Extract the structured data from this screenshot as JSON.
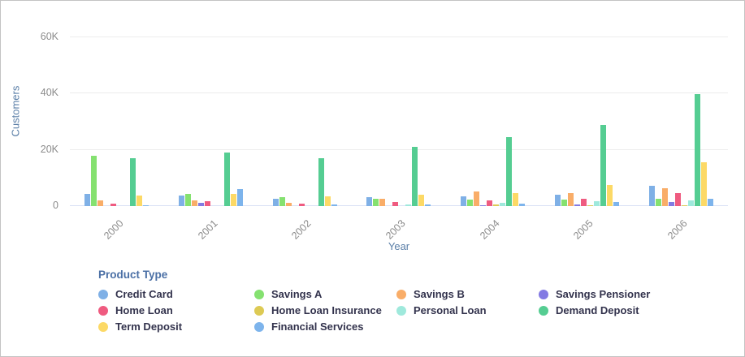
{
  "chart_data": {
    "type": "bar",
    "title": "",
    "xlabel": "Year",
    "ylabel": "Customers",
    "legend_title": "Product Type",
    "legend_position": "bottom",
    "grid": true,
    "ylim": [
      0,
      60000
    ],
    "y_gridlines": [
      {
        "label": "60K",
        "value": 60000
      },
      {
        "label": "40K",
        "value": 40000
      },
      {
        "label": "20K",
        "value": 20000
      },
      {
        "label": "0",
        "value": 0
      }
    ],
    "categories": [
      "2000",
      "2001",
      "2002",
      "2003",
      "2004",
      "2005",
      "2006"
    ],
    "series": [
      {
        "name": "Credit Card",
        "color": "#7fb0e6",
        "values": [
          4400,
          3700,
          2600,
          3100,
          3500,
          4000,
          7300
        ]
      },
      {
        "name": "Savings A",
        "color": "#85e170",
        "values": [
          17800,
          4300,
          3100,
          2600,
          2300,
          2200,
          2700
        ]
      },
      {
        "name": "Savings B",
        "color": "#f9ad68",
        "values": [
          2000,
          1900,
          1100,
          2600,
          5300,
          4700,
          6400
        ]
      },
      {
        "name": "Savings Pensioner",
        "color": "#837ae3",
        "values": [
          100,
          1200,
          100,
          100,
          200,
          500,
          1400
        ]
      },
      {
        "name": "Home Loan",
        "color": "#ef5b80",
        "values": [
          900,
          1600,
          800,
          1500,
          2000,
          2600,
          4700
        ]
      },
      {
        "name": "Home Loan Insurance",
        "color": "#ddca54",
        "values": [
          0,
          0,
          100,
          100,
          600,
          200,
          300
        ]
      },
      {
        "name": "Personal Loan",
        "color": "#9fe9dc",
        "values": [
          100,
          100,
          100,
          700,
          1200,
          1800,
          2100
        ]
      },
      {
        "name": "Demand Deposit",
        "color": "#55cd92",
        "values": [
          17000,
          18900,
          17000,
          21100,
          24600,
          28800,
          39700
        ]
      },
      {
        "name": "Term Deposit",
        "color": "#fcd966",
        "values": [
          3800,
          4400,
          3600,
          4100,
          4600,
          7600,
          15600
        ]
      },
      {
        "name": "Financial Services",
        "color": "#7db4ec",
        "values": [
          300,
          6100,
          600,
          700,
          1000,
          1300,
          2500
        ]
      }
    ]
  }
}
